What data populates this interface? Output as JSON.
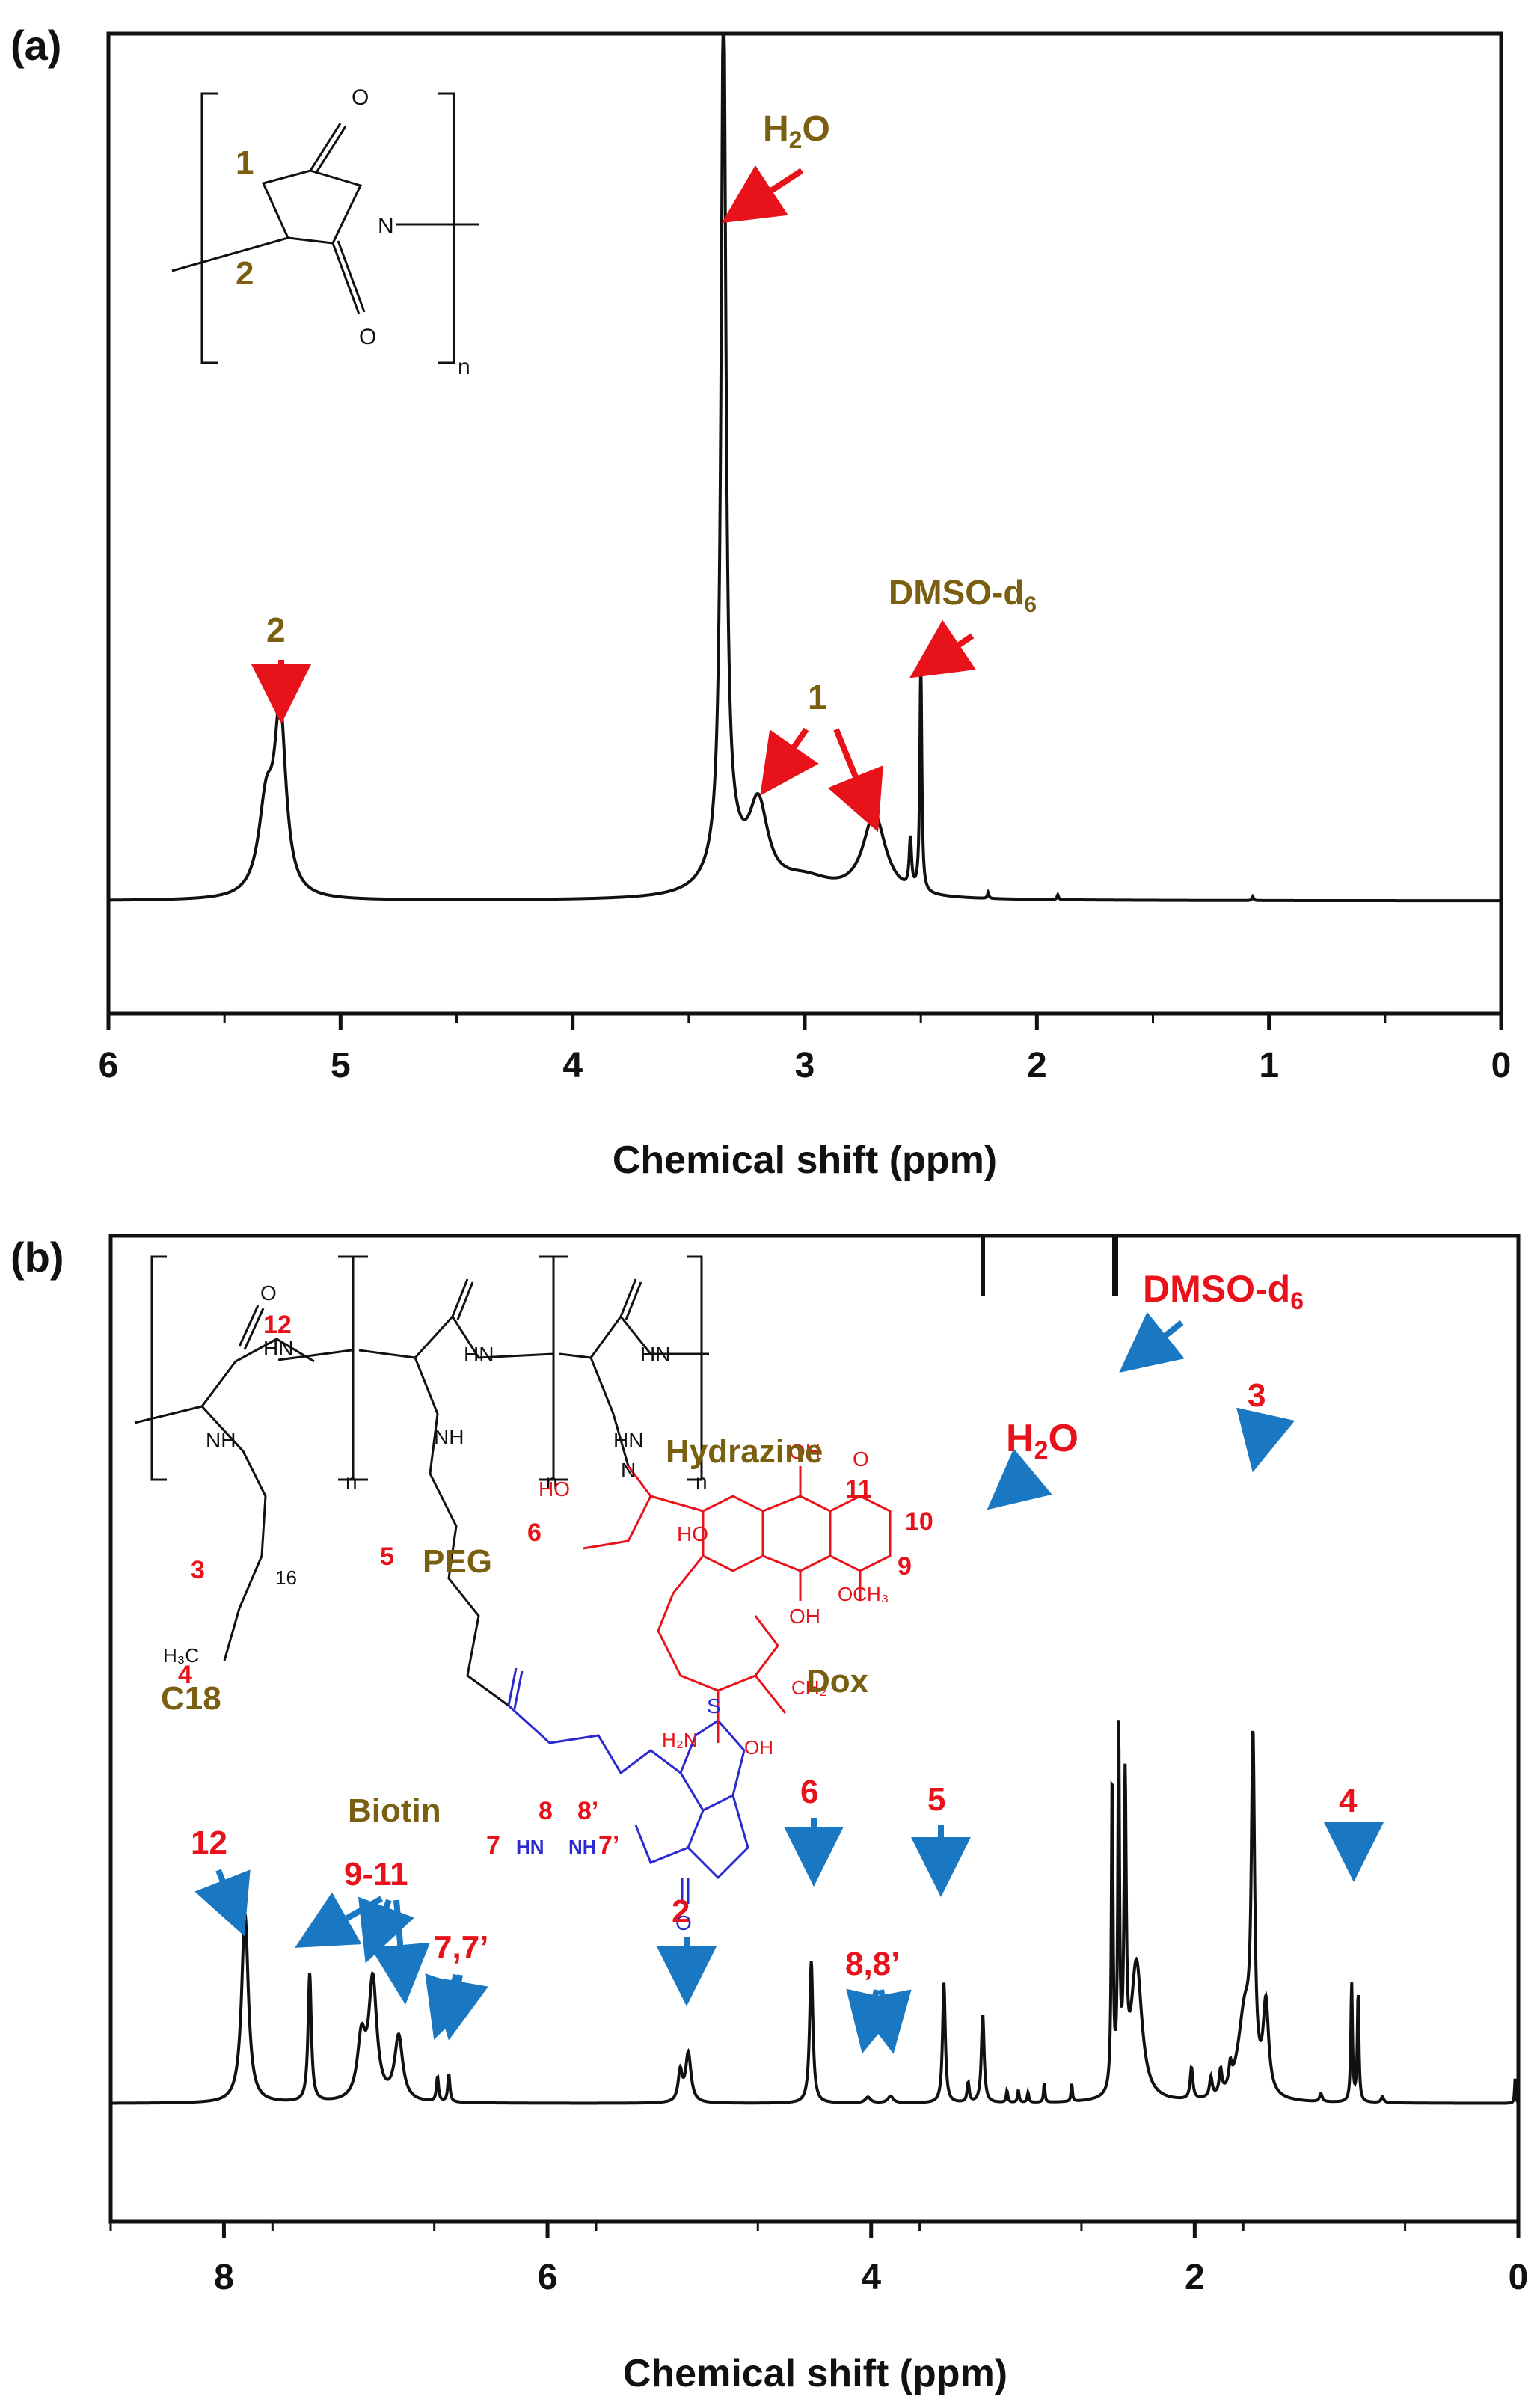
{
  "colors": {
    "gold": "#7a5f10",
    "red": "#e8121b",
    "blue": "#1a78c2",
    "ink": "#111111",
    "biotin_blue": "#2a2ad0"
  },
  "chart_data": [
    {
      "type": "line",
      "panel_label": "(a)",
      "xlabel": "Chemical shift (ppm)",
      "xlim": [
        6,
        0
      ],
      "x_ticks": [
        6,
        5,
        4,
        3,
        2,
        1,
        0
      ],
      "tick_labels": [
        "6",
        "5",
        "4",
        "3",
        "2",
        "1",
        "0"
      ],
      "ylim": [
        0,
        1
      ],
      "baseline": 0.115,
      "peaks": [
        {
          "x": 5.26,
          "h": 0.177,
          "w": 0.03
        },
        {
          "x": 5.32,
          "h": 0.09,
          "w": 0.04
        },
        {
          "x": 3.35,
          "h": 0.895,
          "w": 0.012
        },
        {
          "x": 3.33,
          "h": 0.05,
          "w": 0.08
        },
        {
          "x": 3.2,
          "h": 0.082,
          "w": 0.05
        },
        {
          "x": 3.0,
          "h": 0.018,
          "w": 0.15
        },
        {
          "x": 2.7,
          "h": 0.083,
          "w": 0.06
        },
        {
          "x": 2.545,
          "h": 0.05,
          "w": 0.006
        },
        {
          "x": 2.5,
          "h": 0.235,
          "w": 0.005
        },
        {
          "x": 2.21,
          "h": 0.006,
          "w": 0.004
        },
        {
          "x": 1.91,
          "h": 0.005,
          "w": 0.004
        },
        {
          "x": 1.07,
          "h": 0.004,
          "w": 0.004
        }
      ],
      "annotations": {
        "h2o": "H₂O",
        "dmso": "DMSO-d₆",
        "peak_1": "1",
        "peak_2": "2"
      },
      "structure": {
        "label_1": "1",
        "label_2": "2",
        "atom_o_top": "O",
        "atom_o_bottom": "O",
        "atom_n": "N",
        "repeat": "n"
      }
    },
    {
      "type": "line",
      "panel_label": "(b)",
      "xlabel": "Chemical shift (ppm)",
      "xlim": [
        8.7,
        0
      ],
      "x_ticks": [
        8,
        6,
        4,
        2,
        0
      ],
      "tick_labels": [
        "8",
        "6",
        "4",
        "2",
        "0"
      ],
      "ylim": [
        0,
        1
      ],
      "baseline": 0.12,
      "peaks": [
        {
          "x": 7.87,
          "h": 0.192,
          "w": 0.025
        },
        {
          "x": 7.47,
          "h": 0.13,
          "w": 0.012
        },
        {
          "x": 7.08,
          "h": 0.12,
          "w": 0.03
        },
        {
          "x": 7.15,
          "h": 0.06,
          "w": 0.03
        },
        {
          "x": 6.92,
          "h": 0.065,
          "w": 0.03
        },
        {
          "x": 6.68,
          "h": 0.025,
          "w": 0.008
        },
        {
          "x": 6.61,
          "h": 0.028,
          "w": 0.008
        },
        {
          "x": 5.13,
          "h": 0.05,
          "w": 0.02
        },
        {
          "x": 5.18,
          "h": 0.03,
          "w": 0.015
        },
        {
          "x": 4.37,
          "h": 0.144,
          "w": 0.012
        },
        {
          "x": 4.02,
          "h": 0.006,
          "w": 0.02
        },
        {
          "x": 3.88,
          "h": 0.007,
          "w": 0.02
        },
        {
          "x": 3.55,
          "h": 0.122,
          "w": 0.01
        },
        {
          "x": 3.4,
          "h": 0.02,
          "w": 0.008
        },
        {
          "x": 3.31,
          "h": 0.09,
          "w": 0.01
        },
        {
          "x": 3.16,
          "h": 0.012,
          "w": 0.006
        },
        {
          "x": 3.09,
          "h": 0.012,
          "w": 0.006
        },
        {
          "x": 3.03,
          "h": 0.01,
          "w": 0.006
        },
        {
          "x": 2.93,
          "h": 0.02,
          "w": 0.005
        },
        {
          "x": 2.76,
          "h": 0.018,
          "w": 0.005
        },
        {
          "x": 2.51,
          "h": 0.32,
          "w": 0.006
        },
        {
          "x": 2.47,
          "h": 0.36,
          "w": 0.006
        },
        {
          "x": 2.43,
          "h": 0.3,
          "w": 0.008
        },
        {
          "x": 2.36,
          "h": 0.14,
          "w": 0.04
        },
        {
          "x": 2.02,
          "h": 0.032,
          "w": 0.01
        },
        {
          "x": 1.9,
          "h": 0.02,
          "w": 0.01
        },
        {
          "x": 1.84,
          "h": 0.024,
          "w": 0.01
        },
        {
          "x": 1.78,
          "h": 0.02,
          "w": 0.01
        },
        {
          "x": 1.69,
          "h": 0.09,
          "w": 0.05
        },
        {
          "x": 1.64,
          "h": 0.33,
          "w": 0.012
        },
        {
          "x": 1.56,
          "h": 0.09,
          "w": 0.02
        },
        {
          "x": 1.22,
          "h": 0.008,
          "w": 0.01
        },
        {
          "x": 1.03,
          "h": 0.12,
          "w": 0.006
        },
        {
          "x": 0.99,
          "h": 0.11,
          "w": 0.006
        },
        {
          "x": 0.84,
          "h": 0.006,
          "w": 0.01
        },
        {
          "x": 0.02,
          "h": 0.025,
          "w": 0.004
        }
      ],
      "annotations": {
        "h2o": "H₂O",
        "dmso": "DMSO-d₆",
        "peak_12": "12",
        "peak_9_11": "9-11",
        "peak_7_7p": "7,7’",
        "peak_2": "2",
        "peak_6": "6",
        "peak_8_8p": "8,8’",
        "peak_5": "5",
        "peak_3": "3",
        "peak_4": "4"
      },
      "structure": {
        "hydrazine": "Hydrazine",
        "peg": "PEG",
        "c18": "C18",
        "biotin": "Biotin",
        "dox": "Dox",
        "num_12": "12",
        "num_3": "3",
        "num_4": "4",
        "num_5": "5",
        "num_6": "6",
        "num_7": "7",
        "num_7p": "7’",
        "num_8": "8",
        "num_8p": "8’",
        "num_9": "9",
        "num_10": "10",
        "num_11": "11",
        "chain_16": "16",
        "h3c": "H₃C",
        "atom_hn": "HN",
        "atom_nh": "NH",
        "atom_hn_n": "HN",
        "atom_n": "N",
        "atom_o": "O",
        "atom_s": "S",
        "atom_oh": "OH",
        "atom_ho": "HO",
        "atom_och3": "OCH₃",
        "atom_ch2": "CH₂",
        "atom_h2n": "H₂N",
        "repeat": "n"
      }
    }
  ]
}
